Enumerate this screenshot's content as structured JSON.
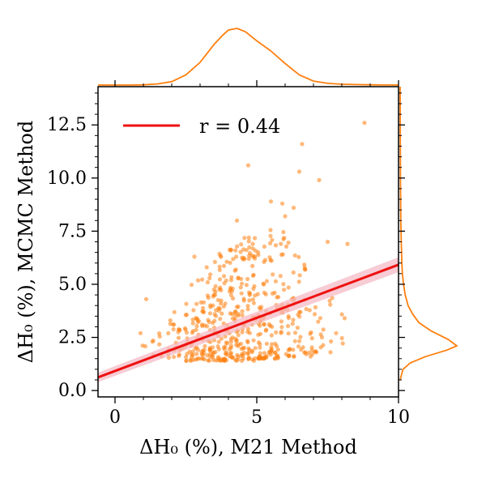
{
  "chart_data": {
    "type": "scatter",
    "xlabel": "ΔH₀ (%), M21 Method",
    "ylabel": "ΔH₀ (%), MCMC Method",
    "xlim": [
      -0.6,
      10.0
    ],
    "ylim": [
      -0.3,
      14.3
    ],
    "x_ticks": [
      0,
      5,
      10
    ],
    "x_tick_labels": [
      "0",
      "5",
      "10"
    ],
    "y_ticks": [
      0.0,
      2.5,
      5.0,
      7.5,
      10.0,
      12.5
    ],
    "y_tick_labels": [
      "0.0",
      "2.5",
      "5.0",
      "7.5",
      "10.0",
      "12.5"
    ],
    "x_minor_ticks": [
      1,
      2,
      3,
      4,
      6,
      7,
      8,
      9
    ],
    "y_minor_ticks": [
      0.5,
      1.0,
      1.5,
      2.0,
      3.0,
      3.5,
      4.0,
      4.5,
      5.5,
      6.0,
      6.5,
      7.0,
      8.0,
      8.5,
      9.0,
      9.5,
      10.5,
      11.0,
      11.5,
      12.0,
      13.0,
      13.5,
      14.0
    ],
    "grid": false,
    "legend_placement": "top-left",
    "series": [
      {
        "type": "fit-line",
        "name": "r = 0.44",
        "color": "#ee1111",
        "band_color": "#f4b6c2",
        "x": [
          -0.6,
          10.0
        ],
        "y": [
          0.62,
          5.92
        ],
        "band_halfwidth_y": [
          0.22,
          0.35
        ]
      },
      {
        "type": "scatter",
        "color": "#ff7f0e",
        "points_cluster_spec": {
          "x_columns": [
            1.0,
            1.3,
            1.6,
            1.9,
            2.1,
            2.3,
            2.5,
            2.7,
            2.9,
            3.1,
            3.3,
            3.5,
            3.7,
            3.9,
            4.1,
            4.3,
            4.5,
            4.7,
            4.9,
            5.1,
            5.3,
            5.5,
            5.7,
            5.9,
            6.1,
            6.3,
            6.5,
            6.7,
            6.9,
            7.1,
            7.3,
            7.6,
            8.0
          ],
          "count_per_column": [
            2,
            3,
            4,
            6,
            8,
            10,
            14,
            16,
            18,
            22,
            24,
            26,
            28,
            28,
            30,
            30,
            30,
            28,
            28,
            26,
            24,
            22,
            20,
            18,
            16,
            14,
            12,
            10,
            8,
            6,
            5,
            4,
            3
          ],
          "y_low": [
            1.6,
            1.6,
            1.5,
            1.5,
            1.5,
            1.4,
            1.4,
            1.4,
            1.4,
            1.4,
            1.4,
            1.4,
            1.4,
            1.4,
            1.4,
            1.4,
            1.4,
            1.4,
            1.4,
            1.5,
            1.5,
            1.5,
            1.5,
            1.5,
            1.6,
            1.6,
            1.6,
            1.7,
            1.7,
            1.8,
            1.8,
            1.9,
            2.0
          ],
          "y_high": [
            2.7,
            3.0,
            3.3,
            3.6,
            3.8,
            4.2,
            4.6,
            5.0,
            5.4,
            5.8,
            6.0,
            6.3,
            6.5,
            6.8,
            7.0,
            7.2,
            7.3,
            7.4,
            7.5,
            7.6,
            7.7,
            7.8,
            7.6,
            7.5,
            7.4,
            7.2,
            7.0,
            6.5,
            6.0,
            5.5,
            5.0,
            4.5,
            4.0
          ]
        },
        "outliers": [
          {
            "x": 8.8,
            "y": 12.6
          },
          {
            "x": 6.6,
            "y": 11.6
          },
          {
            "x": 4.7,
            "y": 10.6
          },
          {
            "x": 7.2,
            "y": 9.9
          },
          {
            "x": 6.5,
            "y": 10.3
          },
          {
            "x": 5.5,
            "y": 8.9
          },
          {
            "x": 5.9,
            "y": 8.8
          },
          {
            "x": 6.3,
            "y": 8.6
          },
          {
            "x": 6.0,
            "y": 8.2
          },
          {
            "x": 4.3,
            "y": 8.0
          },
          {
            "x": 8.2,
            "y": 6.9
          },
          {
            "x": 7.5,
            "y": 7.0
          },
          {
            "x": 2.8,
            "y": 6.3
          },
          {
            "x": 1.1,
            "y": 4.3
          },
          {
            "x": 0.9,
            "y": 2.7
          },
          {
            "x": 7.8,
            "y": 2.7
          },
          {
            "x": 8.1,
            "y": 3.4
          },
          {
            "x": 7.3,
            "y": 2.5
          },
          {
            "x": 6.9,
            "y": 1.6
          },
          {
            "x": 7.6,
            "y": 1.8
          }
        ]
      }
    ],
    "marginal_x": {
      "type": "kde",
      "color": "#ff7f0e",
      "x": [
        -0.6,
        0.5,
        1.0,
        1.5,
        2.0,
        2.5,
        3.0,
        3.5,
        3.8,
        4.0,
        4.3,
        4.6,
        5.0,
        5.5,
        6.0,
        6.5,
        7.0,
        7.5,
        8.0,
        8.5,
        9.0,
        9.5,
        10.0
      ],
      "density": [
        0.0,
        0.0,
        0.005,
        0.02,
        0.06,
        0.18,
        0.4,
        0.72,
        0.88,
        0.97,
        1.0,
        0.94,
        0.78,
        0.6,
        0.38,
        0.18,
        0.07,
        0.03,
        0.015,
        0.008,
        0.004,
        0.002,
        0.0
      ]
    },
    "marginal_y": {
      "type": "kde",
      "color": "#ff7f0e",
      "y": [
        0.5,
        1.0,
        1.3,
        1.6,
        1.9,
        2.1,
        2.4,
        2.8,
        3.2,
        3.6,
        4.0,
        4.5,
        5.0,
        5.5,
        6.0,
        7.0,
        8.0,
        9.0,
        10.0,
        11.0,
        12.0,
        13.0,
        14.3
      ],
      "density": [
        0.0,
        0.05,
        0.18,
        0.45,
        0.82,
        1.0,
        0.85,
        0.55,
        0.33,
        0.22,
        0.14,
        0.09,
        0.06,
        0.04,
        0.03,
        0.02,
        0.012,
        0.008,
        0.006,
        0.004,
        0.003,
        0.002,
        0.0
      ]
    }
  }
}
